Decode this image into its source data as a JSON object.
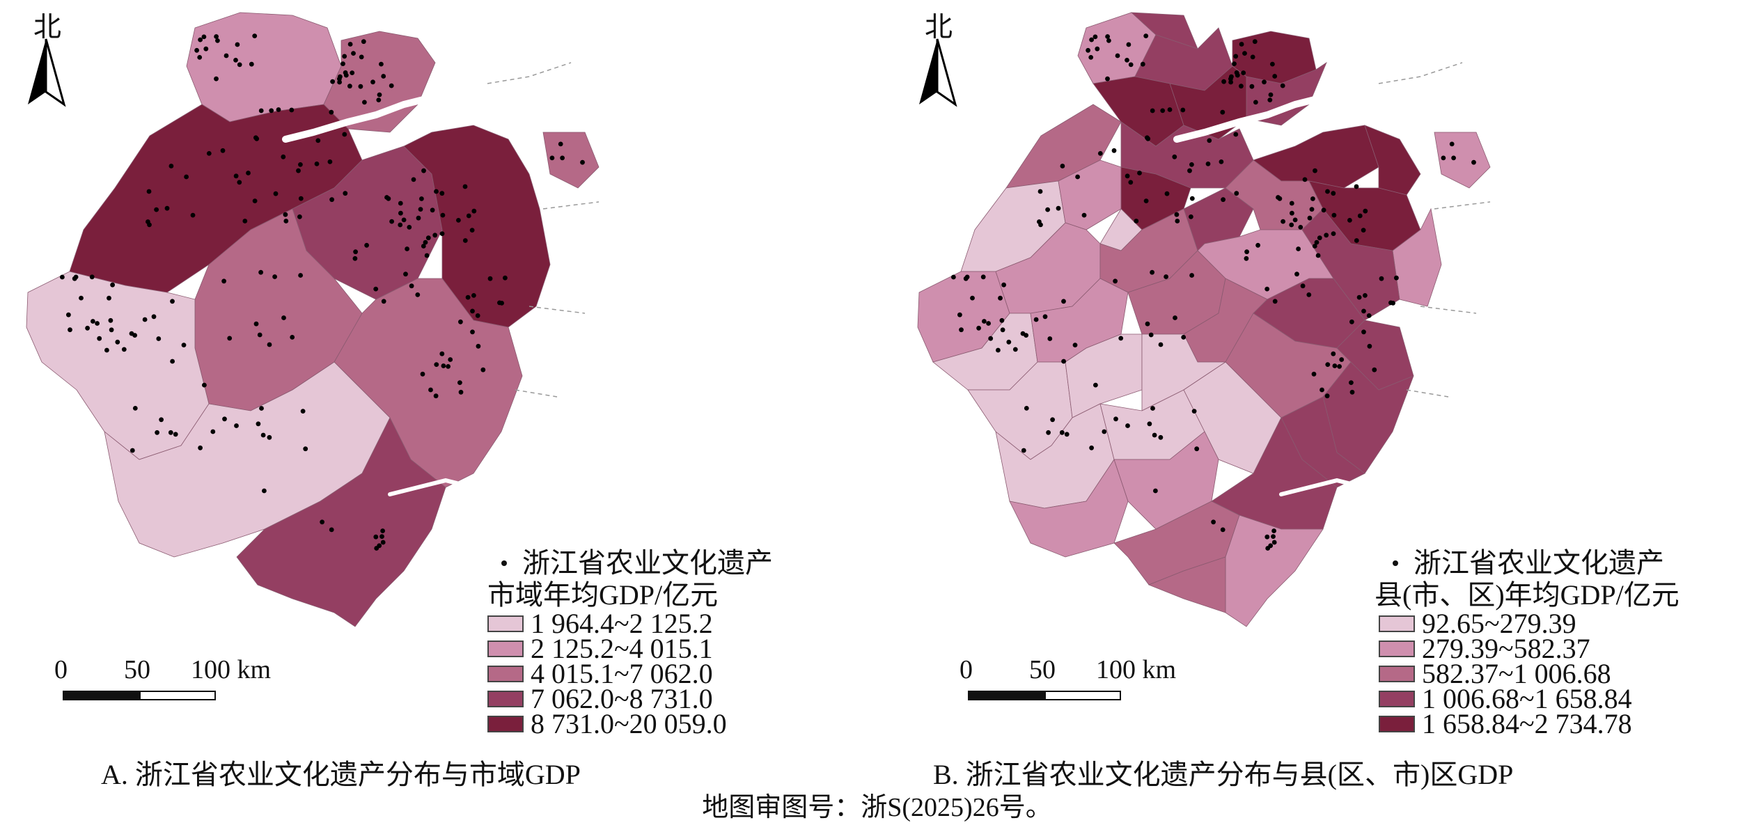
{
  "colors": {
    "class1": "#e5c6d6",
    "class2": "#cf8fae",
    "class3": "#b56987",
    "class4": "#943f62",
    "class5": "#7a1f3c",
    "water": "#ffffff",
    "dot": "#000000"
  },
  "north_label": "北",
  "point_legend": "浙江省农业文化遗产",
  "scale": {
    "l0": "0",
    "l1": "50",
    "l2": "100 km"
  },
  "panel_a": {
    "legend_title": "市域年均GDP/亿元",
    "classes": [
      "1 964.4~2 125.2",
      "2 125.2~4 015.1",
      "4 015.1~7 062.0",
      "7 062.0~8 731.0",
      "8 731.0~20 059.0"
    ],
    "caption": "A. 浙江省农业文化遗产分布与市域GDP"
  },
  "panel_b": {
    "legend_title": "县(市、区)年均GDP/亿元",
    "classes": [
      "92.65~279.39",
      "279.39~582.37",
      "582.37~1 006.68",
      "1 006.68~1 658.84",
      "1 658.84~2 734.78"
    ],
    "caption": "B. 浙江省农业文化遗产分布与县(区、市)区GDP"
  },
  "footnote": "地图审图号：浙S(2025)26号。"
}
